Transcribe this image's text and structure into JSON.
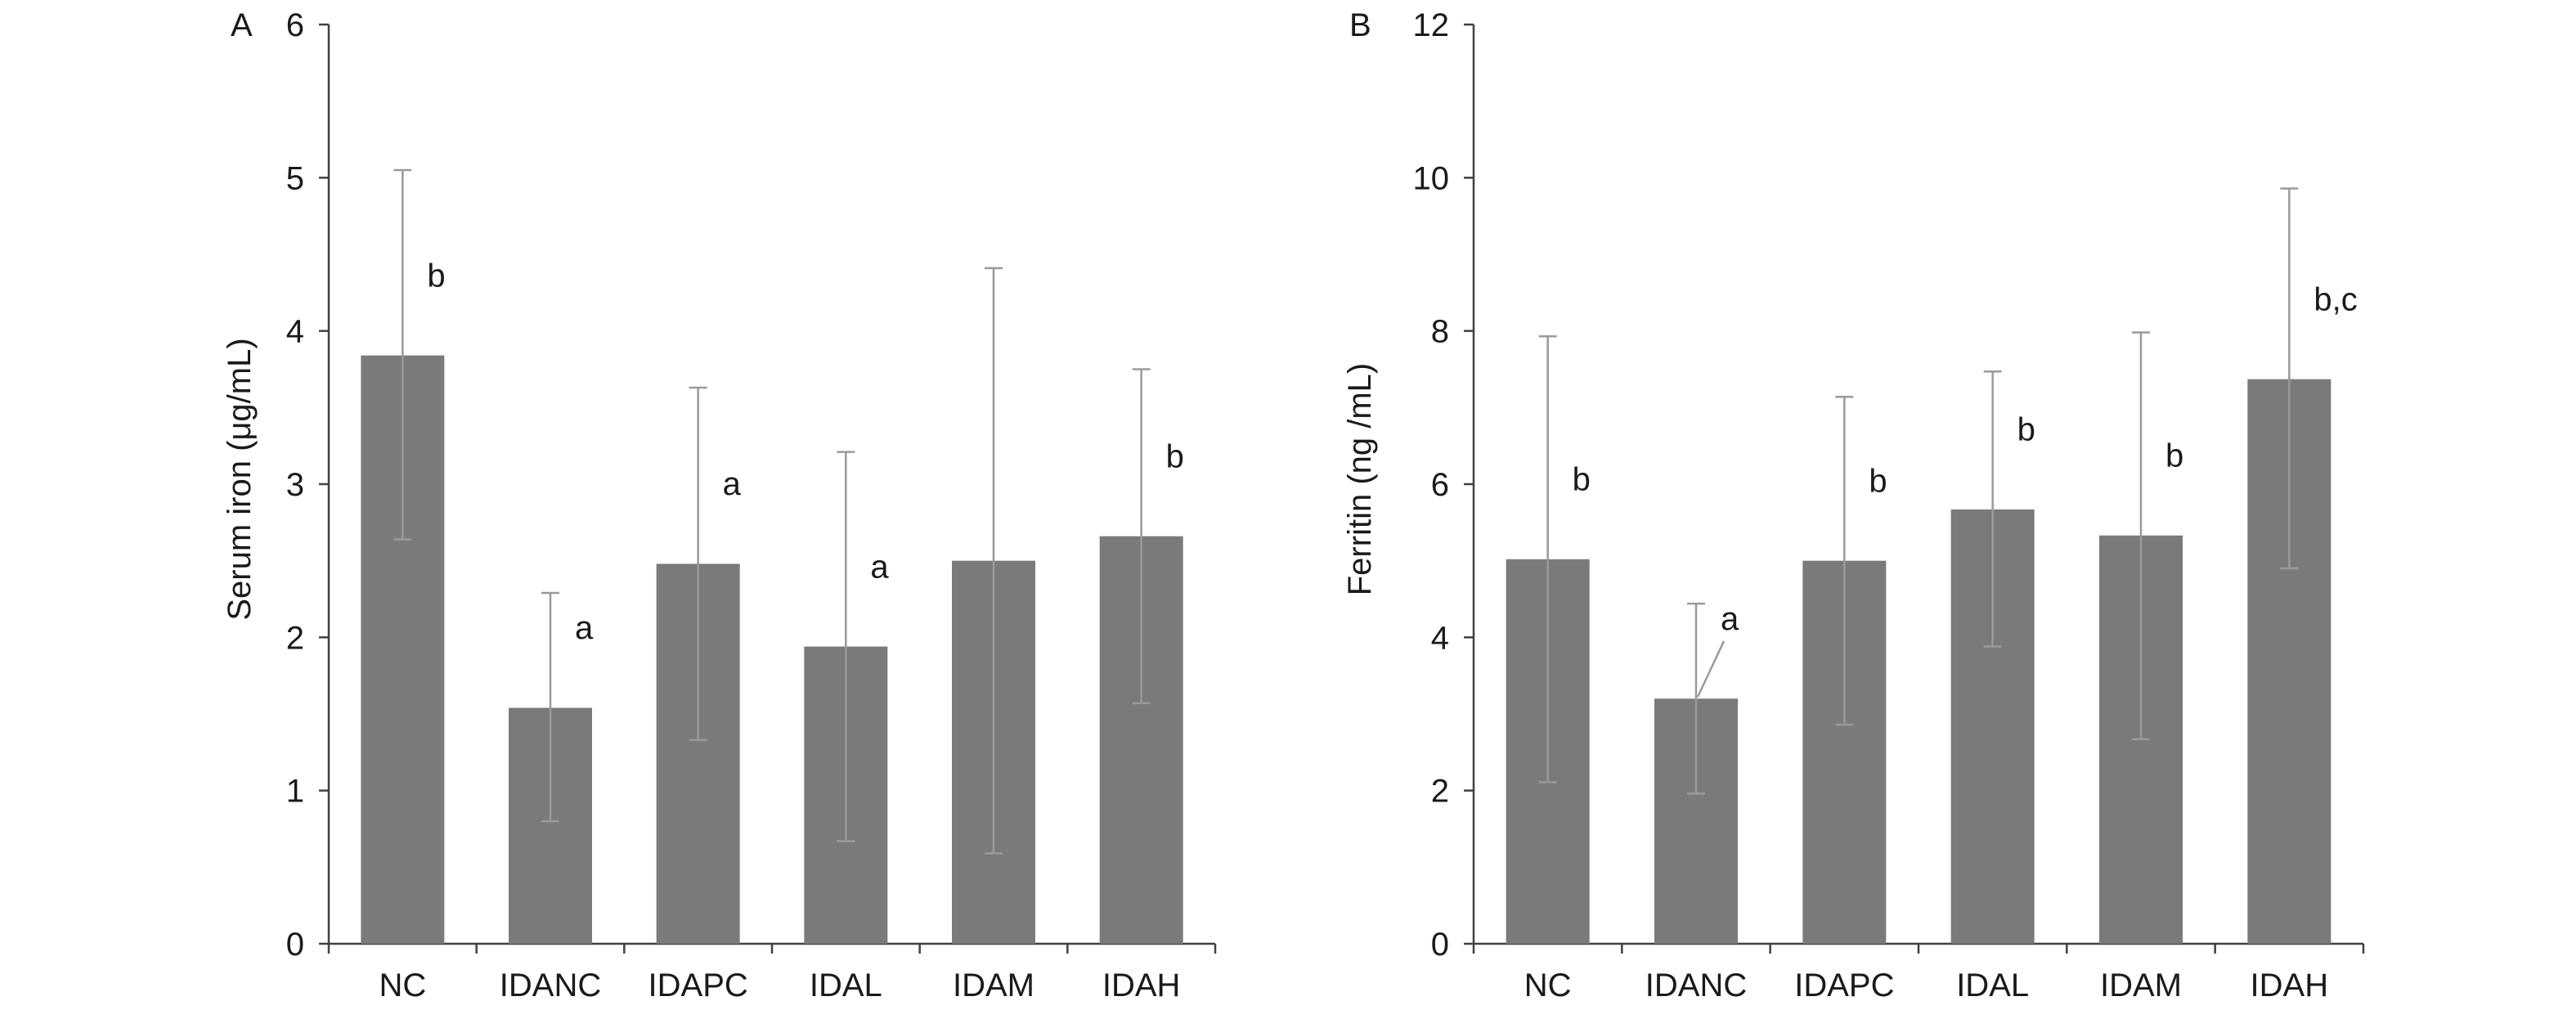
{
  "chart_data": [
    {
      "type": "bar",
      "panel_label": "A",
      "categories": [
        "NC",
        "IDANC",
        "IDAPC",
        "IDAL",
        "IDAM",
        "IDAH"
      ],
      "values": [
        3.84,
        1.54,
        2.48,
        1.94,
        2.5,
        2.66
      ],
      "error_upper": [
        5.05,
        2.29,
        3.63,
        3.21,
        4.41,
        3.75
      ],
      "error_lower": [
        2.64,
        0.8,
        1.33,
        0.67,
        0.59,
        1.57
      ],
      "annotations": [
        "b",
        "a",
        "a",
        "a",
        "",
        "b"
      ],
      "ylabel": "Serum iron (μg/mL)",
      "xlabel": "",
      "ylim": [
        0,
        6
      ],
      "yticks": [
        "0",
        "1",
        "2",
        "3",
        "4",
        "5",
        "6"
      ],
      "grid": false,
      "bar_color": "#7a7a7a",
      "error_color": "#9a9a9a"
    },
    {
      "type": "bar",
      "panel_label": "B",
      "categories": [
        "NC",
        "IDANC",
        "IDAPC",
        "IDAL",
        "IDAM",
        "IDAH"
      ],
      "values": [
        5.02,
        3.2,
        5.0,
        5.67,
        5.33,
        7.37
      ],
      "error_upper": [
        7.93,
        4.44,
        7.14,
        7.47,
        7.98,
        9.86
      ],
      "error_lower": [
        2.11,
        1.96,
        2.86,
        3.88,
        2.67,
        4.9
      ],
      "annotations": [
        "b",
        "a",
        "b",
        "b",
        "b",
        "b,c"
      ],
      "ylabel": "Ferritin (ng /mL)",
      "xlabel": "",
      "ylim": [
        0,
        12
      ],
      "yticks": [
        "0",
        "2",
        "4",
        "6",
        "8",
        "10",
        "12"
      ],
      "grid": false,
      "bar_color": "#7a7a7a",
      "error_color": "#9a9a9a"
    }
  ]
}
